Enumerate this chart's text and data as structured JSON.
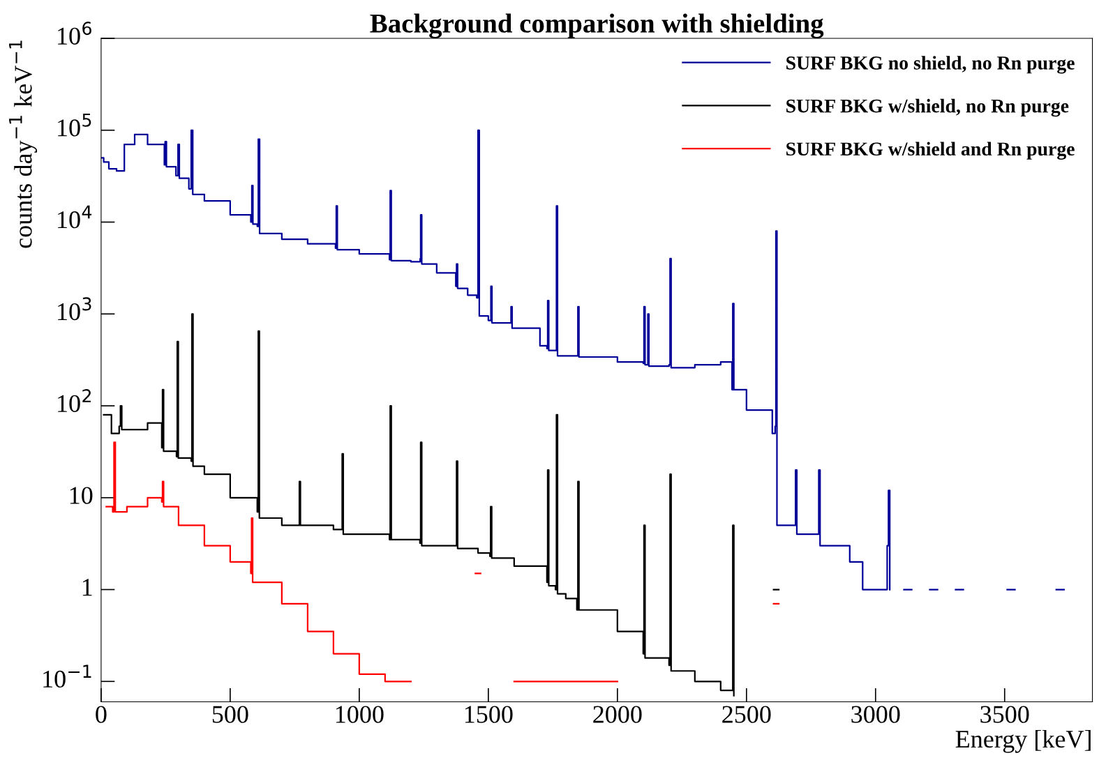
{
  "chart_data": {
    "type": "step",
    "title": "Background comparison with shielding",
    "xlabel": "Energy [keV]",
    "ylabel": "counts day$^{−1}$ keV$^{−1}$",
    "log": "y",
    "xlim": [
      0,
      3840
    ],
    "xticks": [
      0,
      500,
      1000,
      1500,
      2000,
      2500,
      3000,
      3500
    ],
    "ylim": [
      0.06,
      1000000
    ],
    "yticks": [
      {
        "value": 0.1,
        "label": "10$^{−1}$"
      },
      1,
      10,
      {
        "value": 100,
        "label": "10$^{2}$"
      },
      {
        "value": 1000,
        "label": "10$^{3}$"
      },
      {
        "value": 10000,
        "label": "10$^{4}$"
      },
      {
        "value": 100000,
        "label": "10$^{5}$"
      },
      {
        "value": 1000000,
        "label": "10$^{6}$"
      }
    ],
    "grid": false,
    "legend": "top right",
    "line_style": "solid",
    "marker": "none",
    "series": [
      {
        "name": "SURF BKG no shield, no Rn purge",
        "color": "#000099",
        "x": [
          0,
          10,
          30,
          60,
          90,
          130,
          180,
          245,
          248,
          253,
          290,
          298,
          303,
          340,
          349,
          355,
          400,
          500,
          580,
          584,
          588,
          605,
          609,
          614,
          700,
          800,
          908,
          911,
          915,
          1000,
          1117,
          1120,
          1124,
          1200,
          1236,
          1238,
          1242,
          1300,
          1374,
          1377,
          1381,
          1420,
          1455,
          1460,
          1465,
          1500,
          1507,
          1510,
          1514,
          1585,
          1588,
          1592,
          1700,
          1727,
          1730,
          1734,
          1760,
          1764,
          1768,
          1843,
          1847,
          1851,
          2000,
          2100,
          2103,
          2107,
          2115,
          2118,
          2122,
          2200,
          2204,
          2208,
          2300,
          2400,
          2444,
          2447,
          2451,
          2500,
          2600,
          2611,
          2614,
          2618,
          2680,
          2690,
          2695,
          2775,
          2780,
          2785,
          2900,
          2950,
          3045,
          3050,
          3055,
          3100,
          3110,
          3140,
          3141,
          3210,
          3240,
          3241,
          3310,
          3340,
          3341,
          3510,
          3540,
          3541,
          3700,
          3730
        ],
        "values": [
          50000,
          45000,
          38000,
          36000,
          70000,
          90000,
          70000,
          42000,
          75000,
          40000,
          32000,
          70000,
          30000,
          23000,
          100000,
          20000,
          17000,
          12000,
          10000,
          25000,
          9500,
          9000,
          80000,
          7500,
          6500,
          5800,
          5200,
          15000,
          5000,
          4500,
          3900,
          22000,
          3800,
          3700,
          4000,
          12000,
          3500,
          2800,
          2000,
          3500,
          1900,
          1600,
          1500,
          100000,
          950,
          850,
          850,
          2000,
          800,
          800,
          1200,
          700,
          450,
          420,
          1400,
          400,
          400,
          15000,
          350,
          350,
          1200,
          340,
          300,
          290,
          1200,
          280,
          280,
          1000,
          270,
          280,
          4000,
          260,
          280,
          300,
          150,
          1300,
          150,
          90,
          50,
          60,
          8000,
          5,
          5,
          20,
          4,
          4,
          20,
          3,
          2,
          1,
          3,
          12,
          1,
          null,
          1,
          1,
          null,
          1,
          1,
          null,
          1,
          1,
          null,
          1,
          1,
          null,
          1,
          1
        ]
      },
      {
        "name": "SURF BKG w/shield, no Rn purge",
        "color": "#000000",
        "x": [
          10,
          40,
          70,
          75,
          80,
          180,
          235,
          238,
          242,
          292,
          295,
          299,
          349,
          352,
          356,
          400,
          500,
          605,
          609,
          613,
          700,
          765,
          768,
          772,
          900,
          931,
          934,
          938,
          1000,
          1117,
          1120,
          1124,
          1235,
          1238,
          1242,
          1374,
          1377,
          1381,
          1460,
          1506,
          1509,
          1513,
          1600,
          1727,
          1730,
          1734,
          1760,
          1764,
          1768,
          1800,
          1843,
          1847,
          1851,
          2000,
          2100,
          2103,
          2107,
          2200,
          2204,
          2208,
          2300,
          2400,
          2444,
          2447,
          2451,
          2500,
          2600,
          2605,
          2625
        ],
        "values": [
          80,
          50,
          60,
          100,
          55,
          65,
          35,
          150,
          32,
          28,
          500,
          27,
          25,
          1000,
          22,
          18,
          10,
          7,
          650,
          6,
          5,
          5,
          15,
          5,
          4.5,
          4.5,
          30,
          4,
          4,
          3.5,
          100,
          3.5,
          3.2,
          40,
          3,
          3,
          25,
          2.8,
          2.5,
          2.3,
          8,
          2.2,
          1.8,
          1.2,
          20,
          1.1,
          1.0,
          80,
          0.9,
          0.8,
          0.6,
          15,
          0.6,
          0.35,
          0.2,
          5,
          0.18,
          0.15,
          18,
          0.13,
          0.1,
          0.08,
          0.08,
          5,
          0.07,
          null,
          null,
          1,
          1
        ]
      },
      {
        "name": "SURF BKG w/shield and Rn purge",
        "color": "#ff0000",
        "x": [
          20,
          45,
          50,
          55,
          100,
          180,
          235,
          238,
          242,
          300,
          400,
          500,
          580,
          583,
          587,
          600,
          700,
          800,
          900,
          1000,
          1100,
          1200,
          1440,
          1450,
          1470,
          1471,
          1600,
          1700,
          1800,
          2000,
          2100,
          2600,
          2605,
          2625
        ],
        "values": [
          8,
          7,
          40,
          7,
          8,
          10,
          9,
          15,
          8,
          5,
          3,
          2,
          1.5,
          6,
          1.2,
          1.2,
          0.7,
          0.35,
          0.2,
          0.12,
          0.1,
          0.1,
          null,
          1.5,
          1.5,
          null,
          0.1,
          0.1,
          0.1,
          0.1,
          null,
          null,
          0.7,
          0.7
        ]
      }
    ]
  }
}
